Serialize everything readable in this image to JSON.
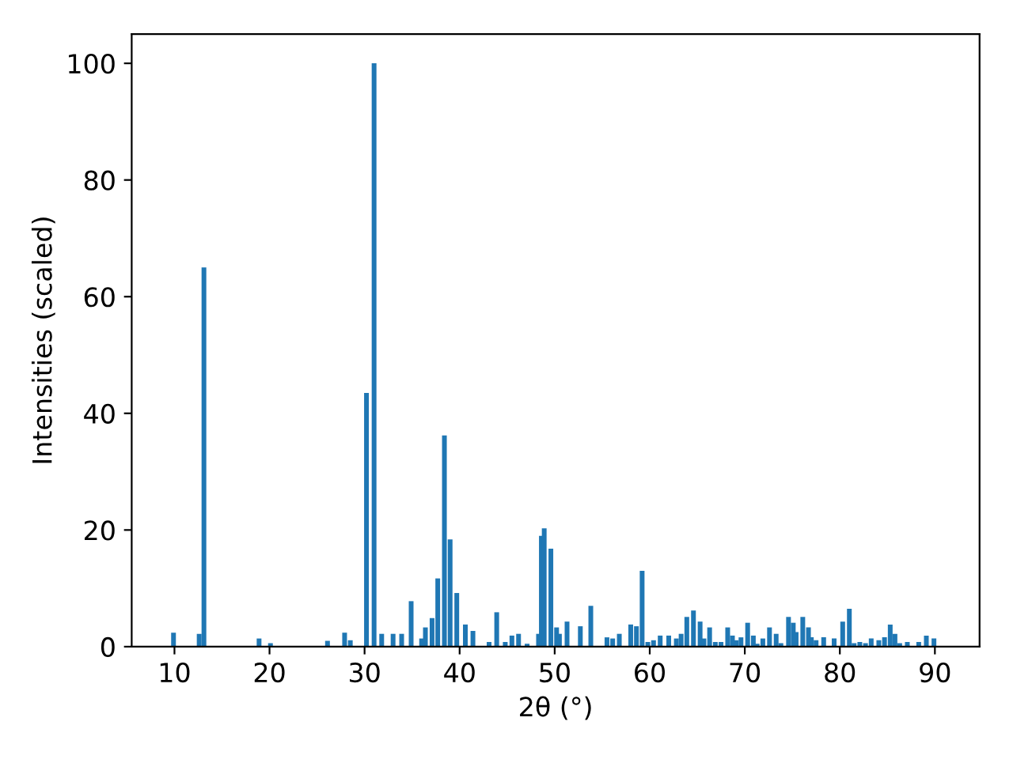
{
  "chart_data": {
    "type": "bar",
    "xlabel": "2θ (°)",
    "ylabel": "Intensities (scaled)",
    "color": "#1f77b4",
    "x": [
      9.9,
      12.6,
      13.1,
      18.9,
      20.1,
      26.1,
      27.9,
      28.5,
      30.2,
      31.0,
      31.8,
      33.0,
      33.9,
      34.9,
      36.0,
      36.4,
      37.1,
      37.7,
      38.4,
      39.0,
      39.7,
      40.6,
      41.4,
      43.1,
      43.9,
      44.8,
      45.5,
      46.2,
      47.1,
      48.3,
      48.6,
      48.9,
      49.6,
      50.2,
      50.5,
      51.3,
      52.7,
      53.8,
      55.5,
      56.1,
      56.8,
      58.0,
      58.6,
      59.2,
      59.8,
      60.4,
      61.1,
      62.0,
      62.8,
      63.3,
      63.9,
      64.6,
      65.3,
      65.7,
      66.3,
      66.9,
      67.5,
      68.2,
      68.7,
      69.1,
      69.6,
      70.3,
      70.9,
      71.3,
      71.9,
      72.6,
      73.3,
      73.8,
      74.6,
      75.1,
      75.4,
      76.1,
      76.7,
      77.0,
      77.5,
      78.3,
      79.4,
      80.3,
      81.0,
      81.5,
      82.1,
      82.7,
      83.3,
      84.1,
      84.7,
      85.3,
      85.8,
      86.3,
      87.1,
      88.3,
      89.1,
      89.9
    ],
    "values": [
      2.4,
      2.2,
      65,
      1.4,
      0.6,
      1.0,
      2.4,
      1.1,
      43.5,
      100,
      2.2,
      2.2,
      2.2,
      7.8,
      1.4,
      3.3,
      4.9,
      11.7,
      36.2,
      18.4,
      9.2,
      3.8,
      2.7,
      0.8,
      5.9,
      0.8,
      1.9,
      2.2,
      0.5,
      2.2,
      19.0,
      20.3,
      16.8,
      3.3,
      2.2,
      4.3,
      3.5,
      7.0,
      1.6,
      1.4,
      2.2,
      3.8,
      3.5,
      13.0,
      0.8,
      1.1,
      1.9,
      1.9,
      1.4,
      2.2,
      5.1,
      6.2,
      4.3,
      1.4,
      3.3,
      0.8,
      0.8,
      3.3,
      1.9,
      1.1,
      1.6,
      4.1,
      1.9,
      0.5,
      1.4,
      3.3,
      2.2,
      0.6,
      5.1,
      4.1,
      2.5,
      5.1,
      3.3,
      1.6,
      1.1,
      1.6,
      1.4,
      4.3,
      6.5,
      0.6,
      0.8,
      0.6,
      1.4,
      1.1,
      1.6,
      3.8,
      2.2,
      0.6,
      0.8,
      0.8,
      1.9,
      1.4
    ],
    "xlim": [
      5.5,
      94.7
    ],
    "ylim": [
      0,
      105
    ],
    "xticks": [
      10,
      20,
      30,
      40,
      50,
      60,
      70,
      80,
      90
    ],
    "yticks": [
      0,
      20,
      40,
      60,
      80,
      100
    ],
    "grid": false
  }
}
